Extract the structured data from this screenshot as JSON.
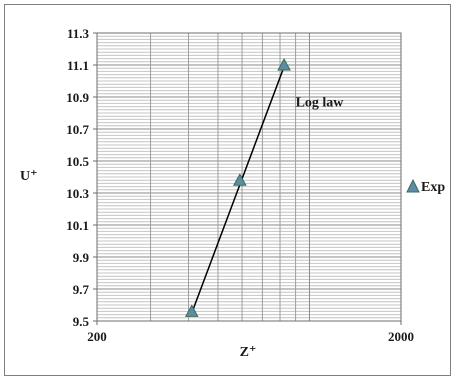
{
  "chart_data": {
    "type": "scatter",
    "title": "",
    "xlabel": "Z⁺",
    "ylabel": "U⁺",
    "xscale": "log",
    "xlim": [
      200,
      2000
    ],
    "ylim": [
      9.5,
      11.3
    ],
    "x_tick_labels": [
      "200",
      "2000"
    ],
    "y_ticks": [
      9.5,
      9.7,
      9.9,
      10.1,
      10.3,
      10.5,
      10.7,
      10.9,
      11.1,
      11.3
    ],
    "y_tick_labels": [
      "9.5",
      "9.7",
      "9.9",
      "10.1",
      "10.3",
      "10.5",
      "10.7",
      "10.9",
      "11.1",
      "11.3"
    ],
    "grid": true,
    "legend_position": "right",
    "series": [
      {
        "name": "Exp",
        "kind": "markers",
        "marker": "triangle",
        "color": "#5b8ea6",
        "edge_color": "#3d6b55",
        "x": [
          410,
          590,
          825
        ],
        "y": [
          9.56,
          10.38,
          11.1
        ]
      },
      {
        "kind": "line",
        "color": "#000000",
        "x": [
          410,
          825
        ],
        "y": [
          9.55,
          11.09
        ]
      }
    ],
    "annotations": [
      {
        "text": "Log law",
        "x": 900,
        "y": 10.84
      }
    ]
  }
}
